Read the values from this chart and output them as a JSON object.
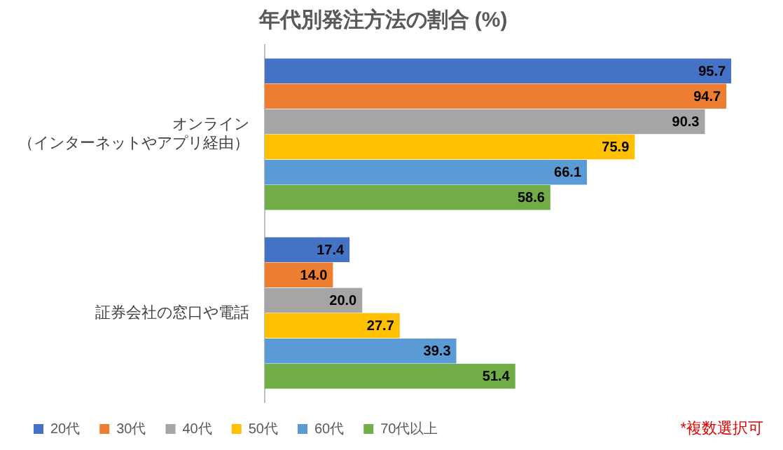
{
  "chart_data": {
    "type": "bar",
    "orientation": "horizontal",
    "title": "年代別発注方法の割合 (%)",
    "categories": [
      "オンライン（インターネットやアプリ経由）",
      "証券会社の窓口や電話"
    ],
    "series": [
      {
        "name": "20代",
        "color": "#4472c4",
        "values": [
          95.7,
          17.4
        ],
        "value_labels": [
          "95.7",
          "17.4"
        ]
      },
      {
        "name": "30代",
        "color": "#ed7d31",
        "values": [
          94.7,
          14.0
        ],
        "value_labels": [
          "94.7",
          "14.0"
        ]
      },
      {
        "name": "40代",
        "color": "#a5a5a5",
        "values": [
          90.3,
          20.0
        ],
        "value_labels": [
          "90.3",
          "20.0"
        ]
      },
      {
        "name": "50代",
        "color": "#ffc000",
        "values": [
          75.9,
          27.7
        ],
        "value_labels": [
          "75.9",
          "27.7"
        ]
      },
      {
        "name": "60代",
        "color": "#5b9bd5",
        "values": [
          66.1,
          39.3
        ],
        "value_labels": [
          "66.1",
          "39.3"
        ]
      },
      {
        "name": "70代以上",
        "color": "#70ad47",
        "values": [
          58.6,
          51.4
        ],
        "value_labels": [
          "58.6",
          "51.4"
        ]
      }
    ],
    "legend": "bottom",
    "grid": false,
    "tick_labels": "y",
    "annotations": [
      "*複数選択可"
    ]
  }
}
